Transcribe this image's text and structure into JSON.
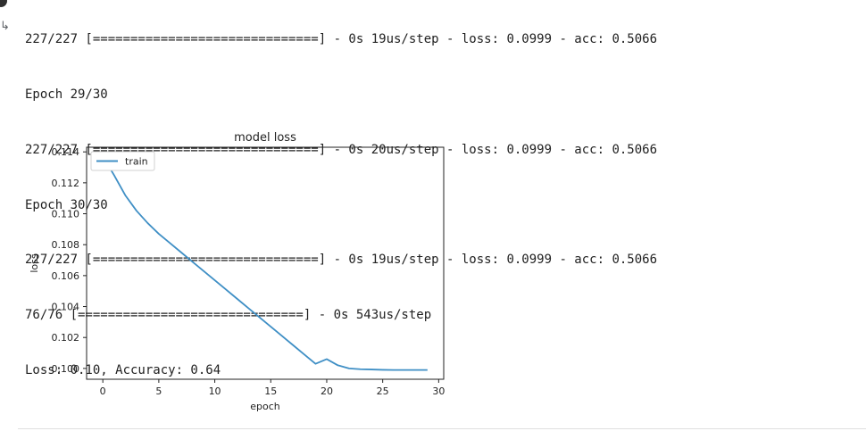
{
  "console": {
    "lines": [
      "227/227 [==============================] - 0s 19us/step - loss: 0.0999 - acc: 0.5066",
      "Epoch 29/30",
      "227/227 [==============================] - 0s 20us/step - loss: 0.0999 - acc: 0.5066",
      "Epoch 30/30",
      "227/227 [==============================] - 0s 19us/step - loss: 0.0999 - acc: 0.5066",
      "76/76 [==============================] - 0s 543us/step",
      "Loss: 0.10, Accuracy: 0.64"
    ]
  },
  "chart_data": {
    "type": "line",
    "title": "model loss",
    "xlabel": "epoch",
    "ylabel": "loss",
    "xlim": [
      -1.45,
      30.45
    ],
    "ylim": [
      0.0993,
      0.1143
    ],
    "xticks": [
      0,
      5,
      10,
      15,
      20,
      25,
      30
    ],
    "yticks": [
      0.1,
      0.102,
      0.104,
      0.106,
      0.108,
      0.11,
      0.112,
      0.114
    ],
    "ytick_labels": [
      "0.100",
      "0.102",
      "0.104",
      "0.106",
      "0.108",
      "0.110",
      "0.112",
      "0.114"
    ],
    "legend_position": "upper-left",
    "grid": false,
    "series": [
      {
        "name": "train",
        "color": "#3f8fc5",
        "x": [
          0,
          1,
          2,
          3,
          4,
          5,
          6,
          7,
          8,
          9,
          10,
          11,
          12,
          13,
          14,
          15,
          16,
          17,
          18,
          19,
          20,
          21,
          22,
          23,
          24,
          25,
          26,
          27,
          28,
          29
        ],
        "values": [
          0.1137,
          0.1125,
          0.1112,
          0.1102,
          0.1094,
          0.1087,
          0.1081,
          0.1075,
          0.1069,
          0.1063,
          0.1057,
          0.1051,
          0.1045,
          0.1039,
          0.1033,
          0.1027,
          0.1021,
          0.1015,
          0.1009,
          0.1003,
          0.1006,
          0.1002,
          0.1,
          0.09995,
          0.09993,
          0.09991,
          0.0999,
          0.0999,
          0.0999,
          0.0999
        ]
      }
    ]
  }
}
